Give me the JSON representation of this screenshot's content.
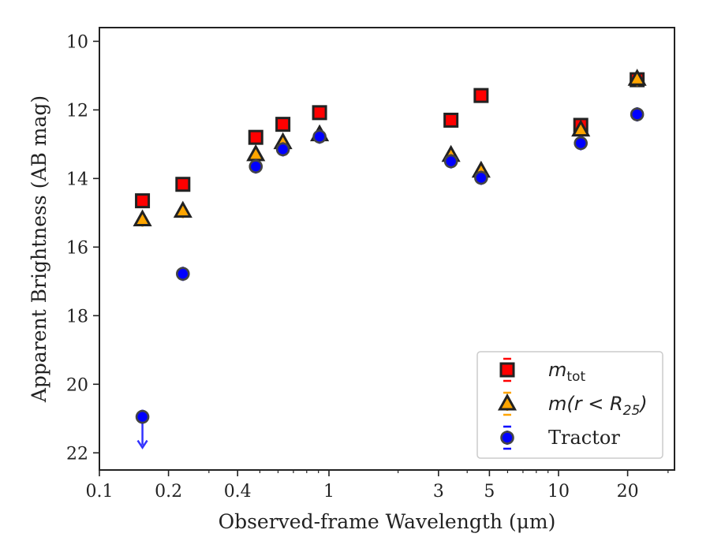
{
  "chart_data": {
    "type": "scatter",
    "title": "",
    "xlabel": "Observed-frame Wavelength (μm)",
    "ylabel": "Apparent Brightness (AB mag)",
    "x_scale": "log",
    "y_inverted": true,
    "xlim": [
      0.1,
      30
    ],
    "ylim": [
      22.5,
      9.6
    ],
    "x_ticks": [
      {
        "value": 0.1,
        "label": "0.1"
      },
      {
        "value": 0.2,
        "label": "0.2"
      },
      {
        "value": 0.4,
        "label": "0.4"
      },
      {
        "value": 1,
        "label": "1"
      },
      {
        "value": 3,
        "label": "3"
      },
      {
        "value": 5,
        "label": "5"
      },
      {
        "value": 10,
        "label": "10"
      },
      {
        "value": 20,
        "label": "20"
      }
    ],
    "y_ticks": [
      {
        "value": 10,
        "label": "10"
      },
      {
        "value": 12,
        "label": "12"
      },
      {
        "value": 14,
        "label": "14"
      },
      {
        "value": 16,
        "label": "16"
      },
      {
        "value": 18,
        "label": "18"
      },
      {
        "value": 20,
        "label": "20"
      },
      {
        "value": 22,
        "label": "22"
      }
    ],
    "legend": {
      "placement": "lower-right",
      "entries": [
        {
          "label_base": "m",
          "label_sub": "tot",
          "marker": "square"
        },
        {
          "label_base": "m(r < R",
          "label_sub": "25",
          "label_after": ")",
          "marker": "triangle"
        },
        {
          "label_base": "Tractor",
          "label_sub": "",
          "marker": "circle"
        }
      ]
    },
    "series": [
      {
        "marker": "square",
        "face_color": "#ff0000",
        "edge_color": "#222222",
        "error_color": "#ff0000",
        "x": [
          0.154,
          0.231,
          0.48,
          0.63,
          0.91,
          3.4,
          4.6,
          12.5,
          22
        ],
        "y": [
          14.65,
          14.17,
          12.8,
          12.42,
          12.08,
          12.3,
          11.58,
          12.45,
          11.12
        ]
      },
      {
        "marker": "triangle",
        "face_color": "#ffa500",
        "edge_color": "#222222",
        "error_color": "#ffa500",
        "x": [
          0.154,
          0.231,
          0.48,
          0.63,
          0.91,
          3.4,
          4.6,
          12.5,
          22
        ],
        "y": [
          15.2,
          14.95,
          13.3,
          12.95,
          12.72,
          13.32,
          13.78,
          12.58,
          11.1
        ]
      },
      {
        "marker": "circle",
        "face_color": "#0000ff",
        "edge_color": "#444444",
        "error_color": "#0000ff",
        "x": [
          0.154,
          0.231,
          0.48,
          0.63,
          0.91,
          3.4,
          4.6,
          12.5,
          22
        ],
        "y": [
          20.95,
          16.78,
          13.65,
          13.15,
          12.78,
          13.5,
          13.98,
          12.97,
          12.13
        ],
        "upper_limit_index": 0
      }
    ],
    "colors": {
      "frame": "#222222",
      "upper_limit_arrow": "#3333ff"
    }
  }
}
